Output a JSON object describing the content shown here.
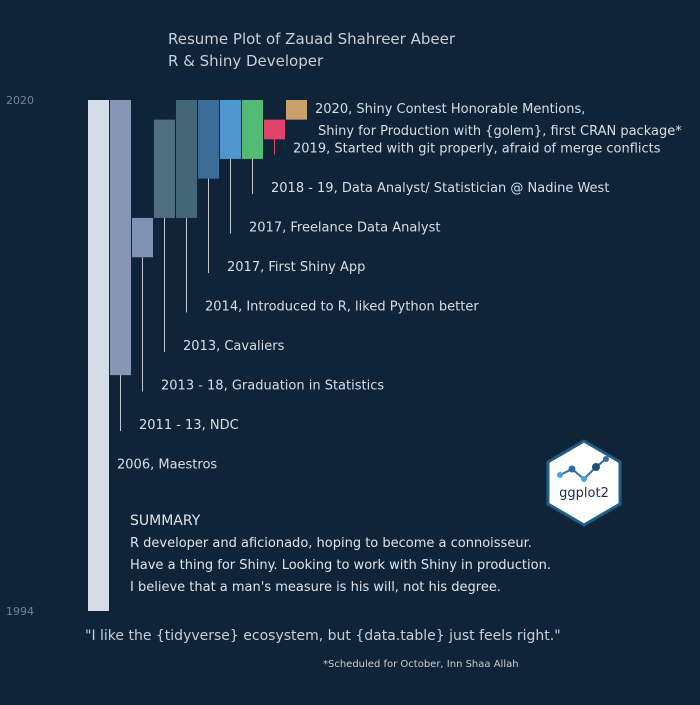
{
  "page": {
    "title_line1": "Resume Plot of Zauad Shahreer Abeer",
    "title_line2": "R & Shiny Developer",
    "footnote": "*Scheduled for October, Inn Shaa Allah",
    "quote": "\"I like the {tidyverse} ecosystem, but {data.table} just feels right.\"",
    "logo_text": "ggplot2",
    "colors": {
      "background": "#0f2438",
      "title": "#c9cfd6",
      "axis": "#6f8597",
      "label": "#d8dee4",
      "summary": "#dfe4e9",
      "segment": "#c0c8d2"
    }
  },
  "summary": {
    "heading": "SUMMARY",
    "lines": [
      "R developer and aficionado, hoping to become a connoisseur.",
      "Have a thing for Shiny. Looking to work with Shiny in production.",
      "I believe that a man's measure is his will, not his degree."
    ]
  },
  "chart_data": {
    "type": "bar",
    "ylim": [
      1994,
      2020
    ],
    "y_ticks": [
      1994,
      2020
    ],
    "grid": false,
    "bars": [
      {
        "label": "2006, Maestros",
        "ymin": 1994,
        "ymax": 2020,
        "color": "#d5dbe8"
      },
      {
        "label": "2011 - 13, NDC",
        "ymin": 2006,
        "ymax": 2020,
        "color": "#8596b6"
      },
      {
        "label": "2013 - 18, Graduation in Statistics",
        "ymin": 2012,
        "ymax": 2014,
        "color": "#7f92b3"
      },
      {
        "label": "2013, Cavaliers",
        "ymin": 2014,
        "ymax": 2019,
        "color": "#4e6f7f"
      },
      {
        "label": "2014, Introduced to R, liked Python better",
        "ymin": 2014,
        "ymax": 2020,
        "color": "#436776"
      },
      {
        "label": "2017, First Shiny App",
        "ymin": 2016,
        "ymax": 2020,
        "color": "#3b6d99"
      },
      {
        "label": "2017, Freelance Data Analyst",
        "ymin": 2017,
        "ymax": 2020,
        "color": "#4e96d0"
      },
      {
        "label": "2018 - 19, Data Analyst/ Statistician @ Nadine West",
        "ymin": 2017,
        "ymax": 2020,
        "color": "#53bb73"
      },
      {
        "label": "2019, Started with git properly, afraid of merge conflicts",
        "ymin": 2018,
        "ymax": 2019,
        "color": "#e0446e"
      },
      {
        "label": "2020, Shiny Contest Honorable Mentions,\nShiny for Production with {golem}, first CRAN package*",
        "ymin": 2019,
        "ymax": 2020,
        "color": "#c8a26a"
      }
    ]
  }
}
